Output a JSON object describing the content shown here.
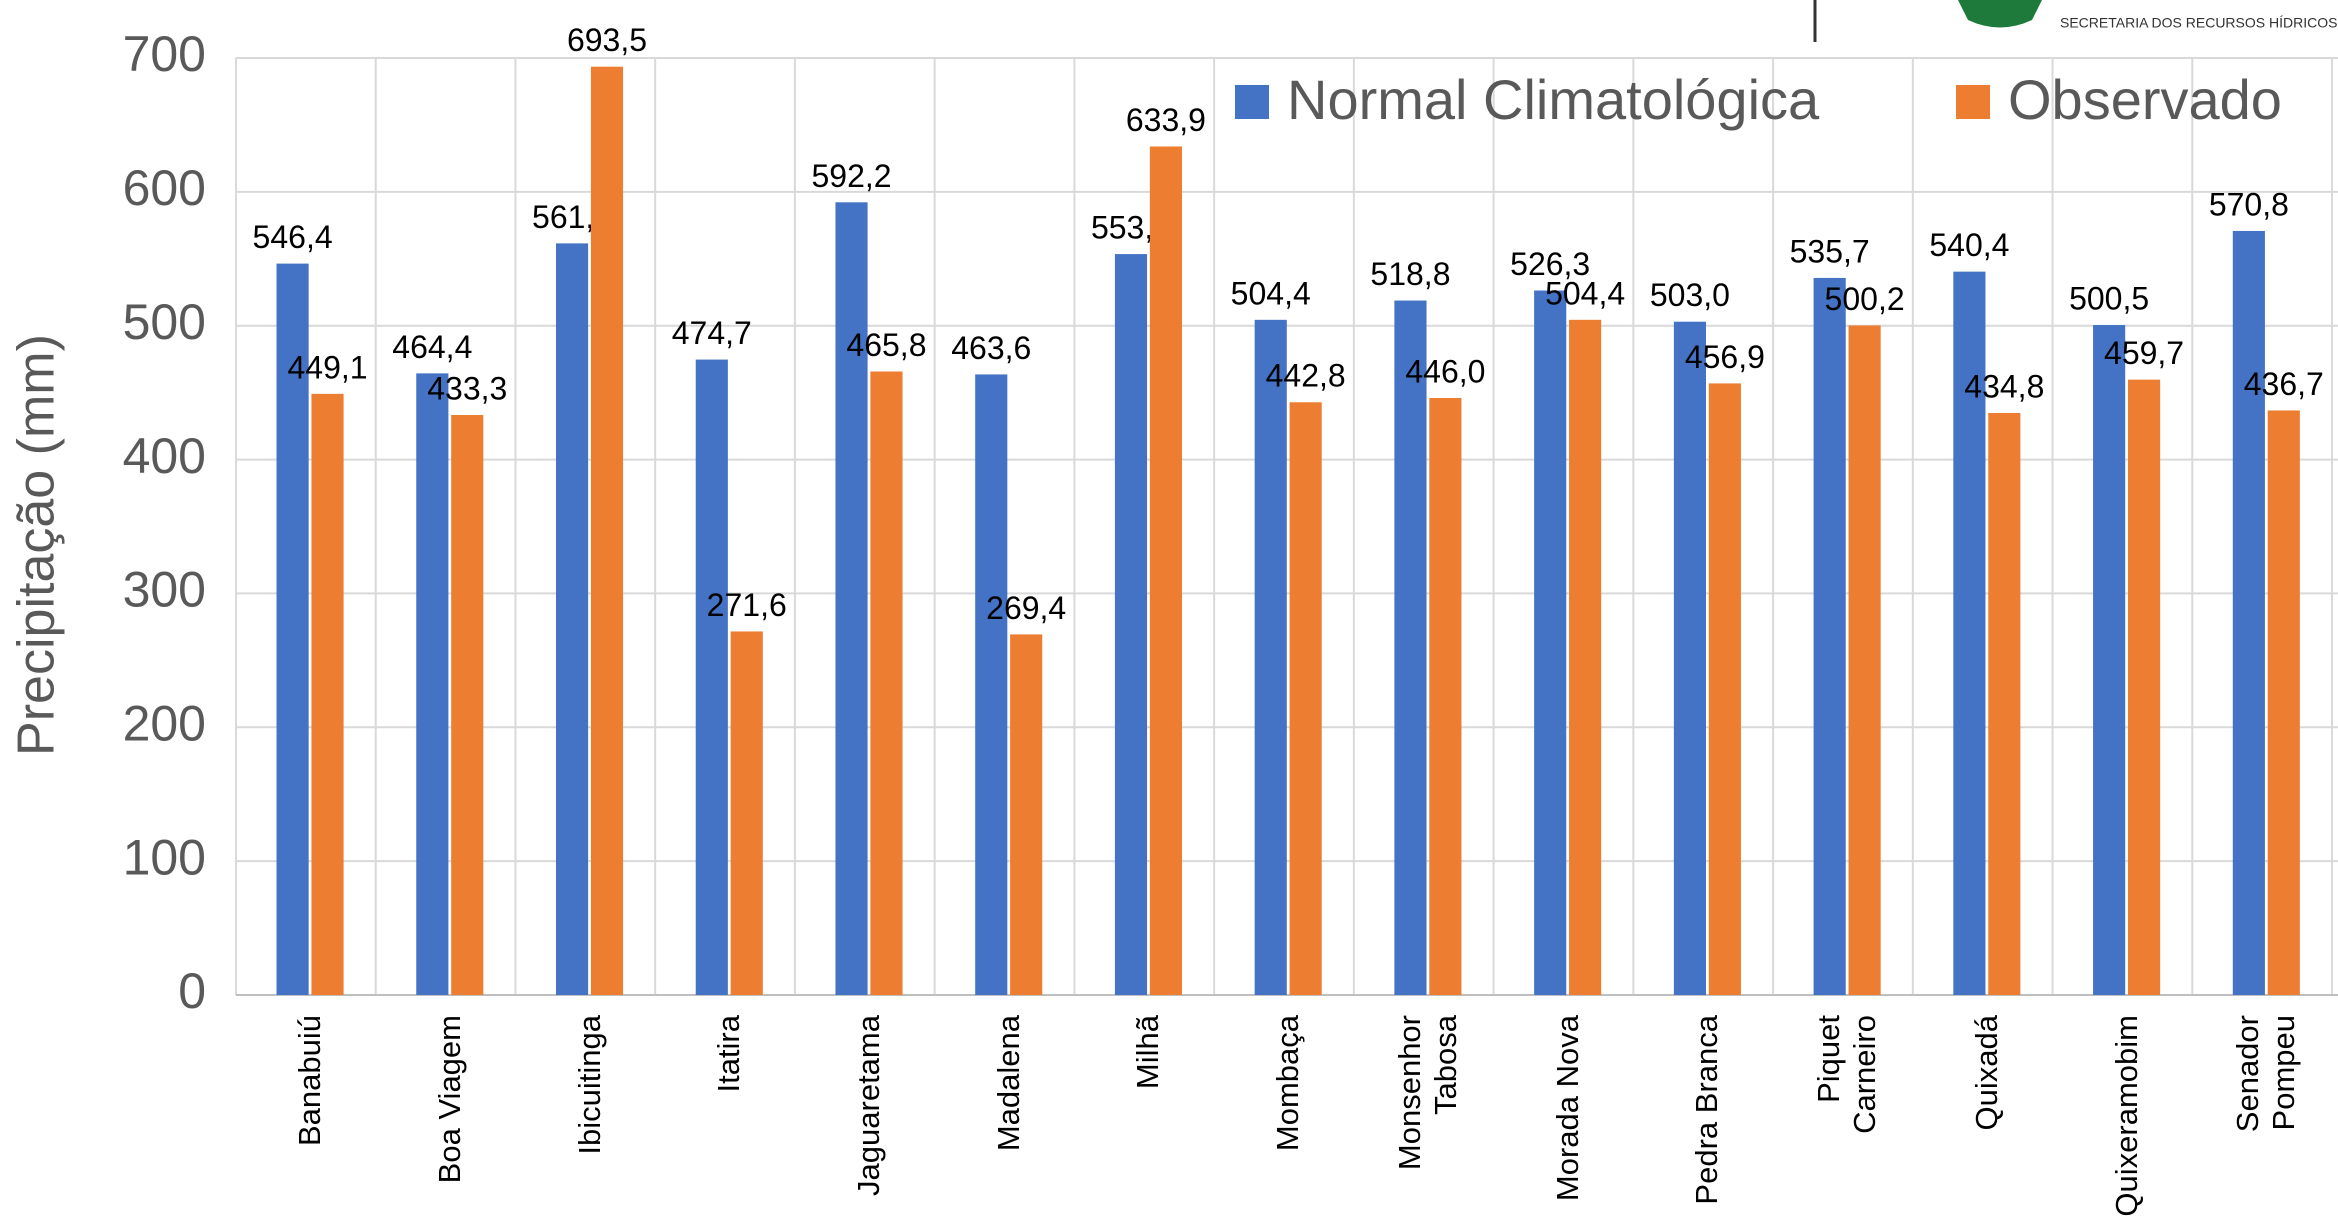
{
  "chart_data": {
    "type": "bar",
    "y_label": "Precipitação (mm)",
    "categories": [
      "Banabuiú",
      "Boa Viagem",
      "Ibicuitinga",
      "Itatira",
      "Jaguaretama",
      "Madalena",
      "Milhã",
      "Mombaça",
      "Monsenhor Tabosa",
      "Morada Nova",
      "Pedra Branca",
      "Piquet Carneiro",
      "Quixadá",
      "Quixeramobim",
      "Senador Pompeu"
    ],
    "series": [
      {
        "name": "Normal Climatológica",
        "color": "#4472c4",
        "values": [
          546.4,
          464.4,
          561.5,
          474.7,
          592.2,
          463.6,
          553.5,
          504.4,
          518.8,
          526.3,
          503.0,
          535.7,
          540.4,
          500.5,
          570.8
        ],
        "value_labels": [
          "546,4",
          "464,4",
          "561,5",
          "474,7",
          "592,2",
          "463,6",
          "553,5",
          "504,4",
          "518,8",
          "526,3",
          "503,0",
          "535,7",
          "540,4",
          "500,5",
          "570,8"
        ]
      },
      {
        "name": "Observado",
        "color": "#ed7d31",
        "values": [
          449.1,
          433.3,
          693.5,
          271.6,
          465.8,
          269.4,
          633.9,
          442.8,
          446.0,
          504.4,
          456.9,
          500.2,
          434.8,
          459.7,
          436.7
        ],
        "value_labels": [
          "449,1",
          "433,3",
          "693,5",
          "271,6",
          "465,8",
          "269,4",
          "633,9",
          "442,8",
          "446,0",
          "504,4",
          "456,9",
          "500,2",
          "434,8",
          "459,7",
          "436,7"
        ]
      }
    ],
    "ylim": [
      0,
      700
    ],
    "yticks": [
      0,
      100,
      200,
      300,
      400,
      500,
      600,
      700
    ],
    "grid": true,
    "legend": "top-right"
  },
  "logo": {
    "text": "SECRETARIA DOS RECURSOS HÍDRICOS"
  }
}
